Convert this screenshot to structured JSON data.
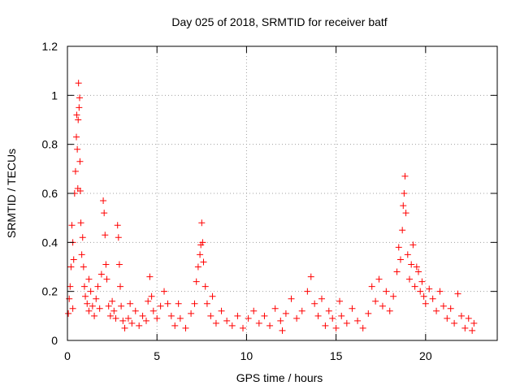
{
  "chart_data": {
    "type": "scatter",
    "title": "Day 025 of 2018, SRMTID for receiver batf",
    "xlabel": "GPS time / hours",
    "ylabel": "SRMTID / TECUs",
    "xlim": [
      0,
      24
    ],
    "ylim": [
      0,
      1.2
    ],
    "x_ticks": [
      0,
      5,
      10,
      15,
      20
    ],
    "x_tick_labels": [
      "0",
      "5",
      "10",
      "15",
      "20"
    ],
    "y_ticks": [
      0,
      0.2,
      0.4,
      0.6,
      0.8,
      1.0,
      1.2
    ],
    "y_tick_labels": [
      "0",
      "0.2",
      "0.4",
      "0.6",
      "0.8",
      "1",
      "1.2"
    ],
    "grid": true,
    "marker": "+",
    "series": [
      {
        "name": "SRMTID",
        "color": "#ff0000",
        "points": [
          [
            0.05,
            0.11
          ],
          [
            0.1,
            0.17
          ],
          [
            0.15,
            0.22
          ],
          [
            0.2,
            0.3
          ],
          [
            0.25,
            0.47
          ],
          [
            0.3,
            0.4
          ],
          [
            0.35,
            0.33
          ],
          [
            0.4,
            0.6
          ],
          [
            0.45,
            0.69
          ],
          [
            0.5,
            0.83
          ],
          [
            0.52,
            0.92
          ],
          [
            0.55,
            0.78
          ],
          [
            0.58,
            0.62
          ],
          [
            0.6,
            0.9
          ],
          [
            0.62,
            1.05
          ],
          [
            0.65,
            0.95
          ],
          [
            0.68,
            0.99
          ],
          [
            0.7,
            0.73
          ],
          [
            0.72,
            0.61
          ],
          [
            0.75,
            0.48
          ],
          [
            0.8,
            0.35
          ],
          [
            0.85,
            0.42
          ],
          [
            0.9,
            0.3
          ],
          [
            0.95,
            0.22
          ],
          [
            1.0,
            0.18
          ],
          [
            1.1,
            0.15
          ],
          [
            1.2,
            0.12
          ],
          [
            1.3,
            0.2
          ],
          [
            1.4,
            0.14
          ],
          [
            1.5,
            0.1
          ],
          [
            1.6,
            0.17
          ],
          [
            1.7,
            0.22
          ],
          [
            1.8,
            0.13
          ],
          [
            1.9,
            0.27
          ],
          [
            2.0,
            0.57
          ],
          [
            2.05,
            0.52
          ],
          [
            2.1,
            0.43
          ],
          [
            2.15,
            0.31
          ],
          [
            2.2,
            0.25
          ],
          [
            2.3,
            0.14
          ],
          [
            2.4,
            0.1
          ],
          [
            2.5,
            0.16
          ],
          [
            2.6,
            0.12
          ],
          [
            2.7,
            0.09
          ],
          [
            2.8,
            0.47
          ],
          [
            2.85,
            0.42
          ],
          [
            2.9,
            0.31
          ],
          [
            2.95,
            0.22
          ],
          [
            3.0,
            0.14
          ],
          [
            3.1,
            0.08
          ],
          [
            3.2,
            0.05
          ],
          [
            3.4,
            0.09
          ],
          [
            3.6,
            0.07
          ],
          [
            3.8,
            0.12
          ],
          [
            4.0,
            0.06
          ],
          [
            4.2,
            0.1
          ],
          [
            4.4,
            0.08
          ],
          [
            4.5,
            0.16
          ],
          [
            4.6,
            0.26
          ],
          [
            4.7,
            0.18
          ],
          [
            4.8,
            0.12
          ],
          [
            5.0,
            0.09
          ],
          [
            5.2,
            0.14
          ],
          [
            5.4,
            0.2
          ],
          [
            5.6,
            0.15
          ],
          [
            5.8,
            0.1
          ],
          [
            6.0,
            0.06
          ],
          [
            6.3,
            0.09
          ],
          [
            6.6,
            0.05
          ],
          [
            6.9,
            0.11
          ],
          [
            7.1,
            0.15
          ],
          [
            7.2,
            0.24
          ],
          [
            7.3,
            0.3
          ],
          [
            7.4,
            0.35
          ],
          [
            7.45,
            0.39
          ],
          [
            7.5,
            0.48
          ],
          [
            7.55,
            0.4
          ],
          [
            7.6,
            0.32
          ],
          [
            7.7,
            0.22
          ],
          [
            7.8,
            0.15
          ],
          [
            8.0,
            0.1
          ],
          [
            8.3,
            0.07
          ],
          [
            8.6,
            0.12
          ],
          [
            8.9,
            0.08
          ],
          [
            9.2,
            0.06
          ],
          [
            9.5,
            0.1
          ],
          [
            9.8,
            0.05
          ],
          [
            10.1,
            0.09
          ],
          [
            10.4,
            0.12
          ],
          [
            10.7,
            0.07
          ],
          [
            11.0,
            0.1
          ],
          [
            11.3,
            0.06
          ],
          [
            11.6,
            0.13
          ],
          [
            11.9,
            0.08
          ],
          [
            12.2,
            0.11
          ],
          [
            12.5,
            0.17
          ],
          [
            12.8,
            0.09
          ],
          [
            13.1,
            0.12
          ],
          [
            13.4,
            0.2
          ],
          [
            13.6,
            0.26
          ],
          [
            13.8,
            0.15
          ],
          [
            14.0,
            0.1
          ],
          [
            14.2,
            0.17
          ],
          [
            14.4,
            0.06
          ],
          [
            14.6,
            0.12
          ],
          [
            14.8,
            0.09
          ],
          [
            15.0,
            0.05
          ],
          [
            15.3,
            0.1
          ],
          [
            15.6,
            0.07
          ],
          [
            15.9,
            0.13
          ],
          [
            16.2,
            0.08
          ],
          [
            16.5,
            0.05
          ],
          [
            16.8,
            0.11
          ],
          [
            17.0,
            0.22
          ],
          [
            17.2,
            0.16
          ],
          [
            17.4,
            0.25
          ],
          [
            17.6,
            0.14
          ],
          [
            17.8,
            0.2
          ],
          [
            18.0,
            0.12
          ],
          [
            18.2,
            0.18
          ],
          [
            18.4,
            0.28
          ],
          [
            18.5,
            0.38
          ],
          [
            18.6,
            0.33
          ],
          [
            18.7,
            0.45
          ],
          [
            18.75,
            0.55
          ],
          [
            18.8,
            0.6
          ],
          [
            18.85,
            0.67
          ],
          [
            18.9,
            0.52
          ],
          [
            19.0,
            0.35
          ],
          [
            19.1,
            0.25
          ],
          [
            19.2,
            0.31
          ],
          [
            19.3,
            0.39
          ],
          [
            19.4,
            0.22
          ],
          [
            19.5,
            0.3
          ],
          [
            19.6,
            0.28
          ],
          [
            19.7,
            0.2
          ],
          [
            19.8,
            0.24
          ],
          [
            19.9,
            0.18
          ],
          [
            20.0,
            0.15
          ],
          [
            20.2,
            0.21
          ],
          [
            20.4,
            0.17
          ],
          [
            20.6,
            0.12
          ],
          [
            20.8,
            0.2
          ],
          [
            21.0,
            0.14
          ],
          [
            21.2,
            0.09
          ],
          [
            21.4,
            0.13
          ],
          [
            21.6,
            0.07
          ],
          [
            21.8,
            0.19
          ],
          [
            22.0,
            0.1
          ],
          [
            22.2,
            0.05
          ],
          [
            22.4,
            0.09
          ],
          [
            22.6,
            0.04
          ],
          [
            22.7,
            0.07
          ],
          [
            0.3,
            0.13
          ],
          [
            1.2,
            0.25
          ],
          [
            3.5,
            0.15
          ],
          [
            6.2,
            0.15
          ],
          [
            8.1,
            0.18
          ],
          [
            12.0,
            0.04
          ],
          [
            15.2,
            0.16
          ]
        ]
      }
    ]
  }
}
